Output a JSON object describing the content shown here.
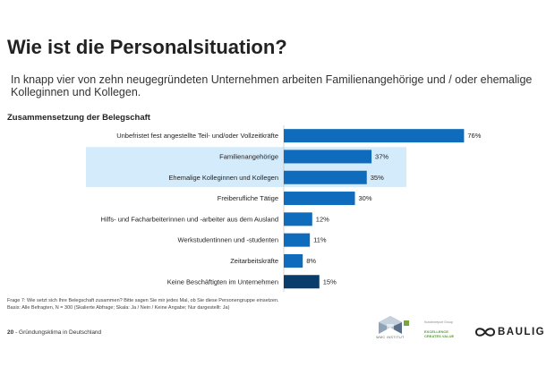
{
  "header": {
    "title": "Wie ist die Personalsituation?",
    "subtitle": "In knapp vier von zehn neugegründeten Unternehmen arbeiten Familienangehörige und / oder ehemalige Kolleginnen und Kollegen."
  },
  "chart_data": {
    "type": "bar",
    "orientation": "horizontal",
    "title": "Zusammensetzung der Belegschaft",
    "categories": [
      "Unbefristet fest angestellte Teil- und/oder Vollzeitkräfte",
      "Familienangehörige",
      "Ehemalige Kolleginnen und Kollegen",
      "Freiberufliche Tätige",
      "Hilfs- und Facharbeiterinnen und -arbeiter aus dem Ausland",
      "Werkstudentinnen und -studenten",
      "Zeitarbeitskräfte",
      "Keine Beschäftigten im Unternehmen"
    ],
    "values": [
      76,
      37,
      35,
      30,
      12,
      11,
      8,
      15
    ],
    "value_labels": [
      "76%",
      "37%",
      "35%",
      "30%",
      "12%",
      "11%",
      "8%",
      "15%"
    ],
    "unit": "%",
    "xlim": [
      0,
      100
    ],
    "highlighted_categories": [
      1,
      2
    ],
    "bar_color": "#0f6cbd",
    "last_bar_color": "#0a3d6b",
    "highlight_color": "#d3ebfa",
    "grid": false,
    "legend": "none"
  },
  "footnote": {
    "line1": "Frage 7: Wie setzt sich Ihre Belegschaft zusammen? Bitte sagen Sie mir jedes Mal, ob Sie diese Personengruppe einsetzen.",
    "line2": "Basis: Alle Befragten, N = 300 (Skalierte Abfrage; Skala: Ja / Nein / Keine Angabe; Nur dargestellt: Ja)"
  },
  "footer": {
    "page_number": "20",
    "separator": "-",
    "section": "Gründungsklima in Deutschland"
  },
  "logos": {
    "wmc": "WMC INSTITUT",
    "award_line1": "Kundenreport Group",
    "award_line2": "EXCELLENCE CREATES VALUE",
    "baulig": "BAULIG"
  }
}
